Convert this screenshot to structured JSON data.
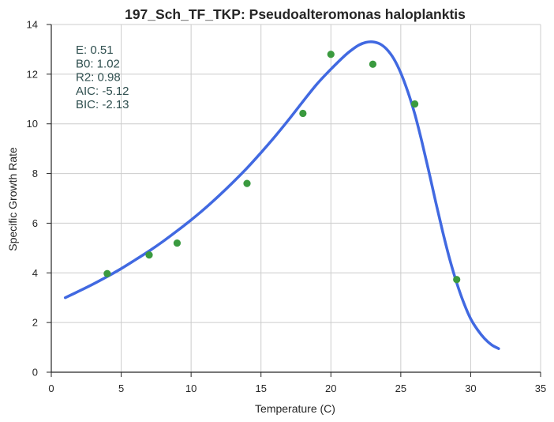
{
  "chart_data": {
    "type": "scatter",
    "title": "197_Sch_TF_TKP: Pseudoalteromonas haloplanktis",
    "xlabel": "Temperature (C)",
    "ylabel": "Specific Growth Rate",
    "xlim": [
      0,
      35
    ],
    "ylim": [
      0,
      14
    ],
    "xticks": [
      0,
      5,
      10,
      15,
      20,
      25,
      30,
      35
    ],
    "yticks": [
      0,
      2,
      4,
      6,
      8,
      10,
      12,
      14
    ],
    "grid": true,
    "observed": {
      "color": "#3a9a3f",
      "x": [
        4,
        7,
        9,
        14,
        18,
        20,
        23,
        26,
        29
      ],
      "y": [
        3.97,
        4.72,
        5.2,
        7.6,
        10.42,
        12.8,
        12.4,
        10.8,
        3.73
      ]
    },
    "fit": {
      "color": "#4169e1",
      "x": [
        1,
        2,
        3,
        4,
        5,
        6,
        7,
        8,
        9,
        10,
        11,
        12,
        13,
        14,
        15,
        16,
        17,
        18,
        19,
        20,
        21,
        21.5,
        22,
        22.5,
        23,
        23.5,
        24,
        24.5,
        25,
        25.5,
        26,
        26.5,
        27,
        27.5,
        28,
        28.5,
        29,
        29.5,
        30,
        30.5,
        31,
        31.5,
        32
      ],
      "y": [
        3.0,
        3.27,
        3.55,
        3.85,
        4.17,
        4.52,
        4.88,
        5.27,
        5.69,
        6.13,
        6.6,
        7.11,
        7.65,
        8.22,
        8.84,
        9.49,
        10.18,
        10.9,
        11.6,
        12.2,
        12.75,
        12.98,
        13.17,
        13.28,
        13.3,
        13.22,
        13.0,
        12.62,
        12.05,
        11.3,
        10.4,
        9.3,
        8.1,
        6.85,
        5.65,
        4.55,
        3.6,
        2.8,
        2.15,
        1.7,
        1.35,
        1.1,
        0.95
      ]
    },
    "stats": {
      "lines": [
        "E:  0.51",
        "B0:  1.02",
        "R2:  0.98",
        "AIC: -5.12",
        "BIC: -2.13"
      ]
    }
  }
}
